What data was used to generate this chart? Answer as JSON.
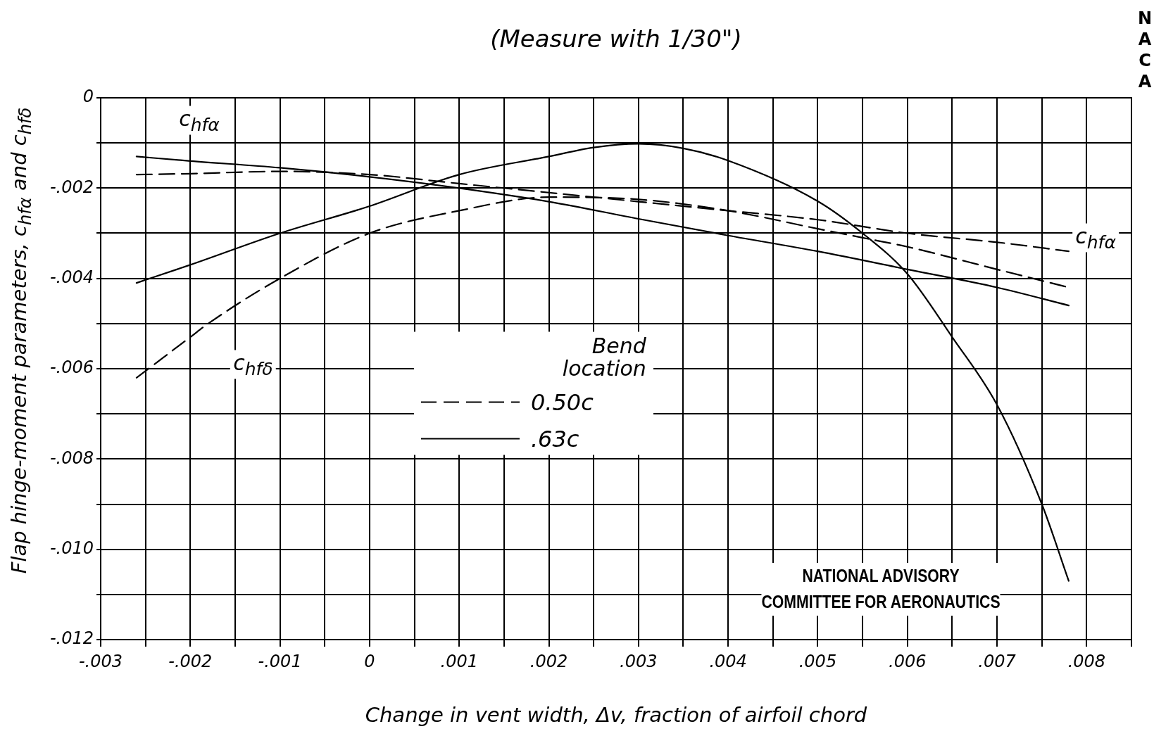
{
  "chart_data": {
    "type": "line",
    "title": "(Measure with 1/30\")",
    "xlabel": "Change in vent width, Δv, fraction of airfoil chord",
    "ylabel": "Flap hinge-moment parameters, c$_{hfα}$ and c$_{hfδ}$",
    "legend_title": "Bend location",
    "legend": "center",
    "grid": true,
    "marker": "none",
    "xlim": [
      -0.003,
      0.0085
    ],
    "ylim": [
      -0.012,
      0
    ],
    "xticks": [
      {
        "value": -0.003,
        "label": "-.003"
      },
      {
        "value": -0.0025,
        "label": null
      },
      {
        "value": -0.002,
        "label": "-.002"
      },
      {
        "value": -0.0015,
        "label": null
      },
      {
        "value": -0.001,
        "label": "-.001"
      },
      {
        "value": -0.0005,
        "label": null
      },
      {
        "value": 0,
        "label": "0"
      },
      {
        "value": 0.0005,
        "label": null
      },
      {
        "value": 0.001,
        "label": ".001"
      },
      {
        "value": 0.0015,
        "label": null
      },
      {
        "value": 0.002,
        "label": ".002"
      },
      {
        "value": 0.0025,
        "label": null
      },
      {
        "value": 0.003,
        "label": ".003"
      },
      {
        "value": 0.0035,
        "label": null
      },
      {
        "value": 0.004,
        "label": ".004"
      },
      {
        "value": 0.0045,
        "label": null
      },
      {
        "value": 0.005,
        "label": ".005"
      },
      {
        "value": 0.0055,
        "label": null
      },
      {
        "value": 0.006,
        "label": ".006"
      },
      {
        "value": 0.0065,
        "label": null
      },
      {
        "value": 0.007,
        "label": ".007"
      },
      {
        "value": 0.0075,
        "label": null
      },
      {
        "value": 0.008,
        "label": ".008"
      },
      {
        "value": 0.0085,
        "label": null
      }
    ],
    "yticks": [
      {
        "value": 0,
        "label": "0"
      },
      {
        "value": -0.001,
        "label": null
      },
      {
        "value": -0.002,
        "label": "-.002"
      },
      {
        "value": -0.003,
        "label": null
      },
      {
        "value": -0.004,
        "label": "-.004"
      },
      {
        "value": -0.005,
        "label": null
      },
      {
        "value": -0.006,
        "label": "-.006"
      },
      {
        "value": -0.007,
        "label": null
      },
      {
        "value": -0.008,
        "label": "-.008"
      },
      {
        "value": -0.009,
        "label": null
      },
      {
        "value": -0.01,
        "label": "-.010"
      },
      {
        "value": -0.011,
        "label": null
      },
      {
        "value": -0.012,
        "label": "-.012"
      }
    ],
    "series": [
      {
        "name": "0.50c",
        "color": "#000000",
        "line_style": "dashed",
        "x": [
          -0.0026,
          -0.002,
          -0.0018,
          -0.001,
          0,
          0.001,
          0.002,
          0.003,
          0.004,
          0.005,
          0.0055,
          0.006,
          0.007,
          0.0078
        ],
        "values": [
          -0.0062,
          -0.0053,
          -0.005,
          -0.004,
          -0.003,
          -0.0025,
          -0.0022,
          -0.00225,
          -0.0025,
          -0.0029,
          -0.0031,
          -0.0033,
          -0.0038,
          -0.0042
        ]
      },
      {
        "name": ".63c",
        "color": "#000000",
        "line_style": "solid",
        "x": [
          -0.0026,
          -0.002,
          -0.001,
          0,
          0.001,
          0.002,
          0.0025,
          0.003,
          0.0035,
          0.004,
          0.005,
          0.0055,
          0.006,
          0.0065,
          0.007,
          0.0075,
          0.0078
        ],
        "values": [
          -0.0041,
          -0.0037,
          -0.003,
          -0.0024,
          -0.0017,
          -0.0013,
          -0.0011,
          -0.00102,
          -0.00112,
          -0.00139,
          -0.00229,
          -0.003,
          -0.0039,
          -0.0053,
          -0.0068,
          -0.009,
          -0.0107
        ]
      },
      {
        "color": "#000000",
        "line_style": "dashed",
        "x": [
          -0.0026,
          -0.002,
          -0.001,
          0,
          0.001,
          0.002,
          0.003,
          0.004,
          0.005,
          0.006,
          0.007,
          0.0078
        ],
        "values": [
          -0.0017,
          -0.00168,
          -0.00163,
          -0.0017,
          -0.0019,
          -0.0021,
          -0.0023,
          -0.0025,
          -0.0027,
          -0.003,
          -0.0032,
          -0.0034
        ]
      },
      {
        "color": "#000000",
        "line_style": "solid",
        "x": [
          -0.0026,
          -0.002,
          -0.001,
          0,
          0.001,
          0.002,
          0.003,
          0.004,
          0.005,
          0.006,
          0.007,
          0.0078
        ],
        "values": [
          -0.0013,
          -0.0014,
          -0.00155,
          -0.00175,
          -0.002,
          -0.0023,
          -0.00268,
          -0.00305,
          -0.0034,
          -0.0038,
          -0.0042,
          -0.0046
        ]
      }
    ],
    "annotations": [
      "c$_{hfα}$",
      "c$_{hfδ}$",
      "c$_{hfα}$",
      "NATIONAL ADVISORY\nCOMMITTEE FOR AERONAUTICS",
      "NACA"
    ]
  }
}
